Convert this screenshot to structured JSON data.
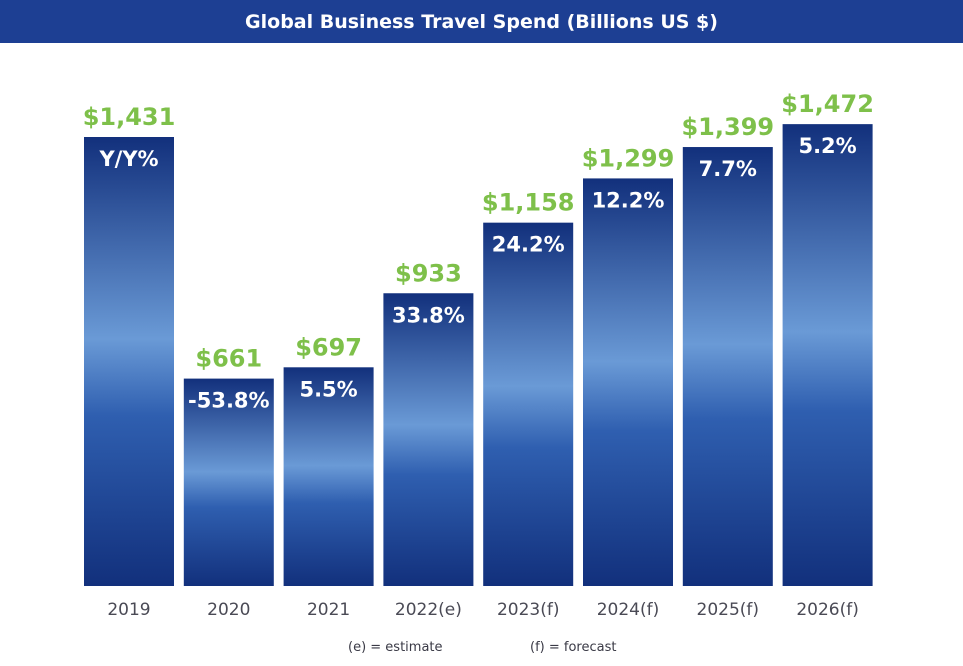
{
  "title": "Global Business Travel Spend (Billions US $)",
  "colors": {
    "title_bar": "#1d3f93",
    "bar_fill_dark": "#12307c",
    "bar_fill_light": "#6a9ad6",
    "value_label": "#7ec04a",
    "growth_label": "#ffffff",
    "year_label": "#4a4a55"
  },
  "notes": {
    "estimate": "(e) = estimate",
    "forecast": "(f) = forecast"
  },
  "chart_data": {
    "type": "bar",
    "title": "Global Business Travel Spend (Billions US $)",
    "xlabel": "",
    "ylabel": "",
    "ylim": [
      0,
      1500
    ],
    "grid": false,
    "legend": "none",
    "categories": [
      "2019",
      "2020",
      "2021",
      "2022(e)",
      "2023(f)",
      "2024(f)",
      "2025(f)",
      "2026(f)"
    ],
    "values": [
      1431,
      661,
      697,
      933,
      1158,
      1299,
      1399,
      1472
    ],
    "value_labels": [
      "$1,431",
      "$661",
      "$697",
      "$933",
      "$1,158",
      "$1,299",
      "$1,399",
      "$1,472"
    ],
    "growth_labels": [
      "Y/Y%",
      "-53.8%",
      "5.5%",
      "33.8%",
      "24.2%",
      "12.2%",
      "7.7%",
      "5.2%"
    ]
  }
}
